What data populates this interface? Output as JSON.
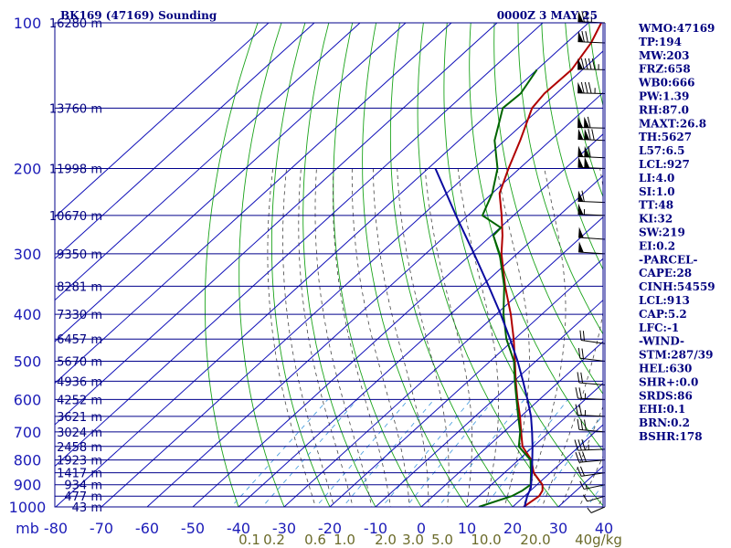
{
  "title": "BK169 (47169) Sounding",
  "valid_time": "0000Z  3 MAY 25",
  "colors": {
    "frame": "#00008b",
    "isotherm": "#1010b8",
    "dry_adiabat": "#1aa31a",
    "moist_adiabat": "#444444",
    "mixing_ratio": "#3c96dc",
    "temperature": "#b00000",
    "dewpoint": "#006400",
    "parcel": "#0a0aa0",
    "wind": "#000000",
    "mixing_label": "#6b6b2a"
  },
  "chart_data": {
    "type": "line",
    "chart_kind": "skew-T log-P",
    "y_axis": {
      "unit": "mb",
      "scale": "log",
      "range": [
        1000,
        100
      ],
      "ticks": [
        100,
        200,
        300,
        400,
        500,
        600,
        700,
        800,
        900,
        1000
      ]
    },
    "x_axis": {
      "unit": "°C",
      "range": [
        -80,
        40
      ],
      "ticks": [
        -80,
        -70,
        -60,
        -50,
        -40,
        -30,
        -20,
        -10,
        0,
        10,
        20,
        30,
        40
      ]
    },
    "pressure_unit_label": "mb",
    "height_labels": [
      {
        "p": 1000,
        "label": "43 m"
      },
      {
        "p": 950,
        "label": "477 m"
      },
      {
        "p": 900,
        "label": "934 m"
      },
      {
        "p": 850,
        "label": "1417 m"
      },
      {
        "p": 800,
        "label": "1923 m"
      },
      {
        "p": 750,
        "label": "2458 m"
      },
      {
        "p": 700,
        "label": "3024 m"
      },
      {
        "p": 650,
        "label": "3621 m"
      },
      {
        "p": 600,
        "label": "4252 m"
      },
      {
        "p": 550,
        "label": "4936 m"
      },
      {
        "p": 500,
        "label": "5670 m"
      },
      {
        "p": 450,
        "label": "6457 m"
      },
      {
        "p": 400,
        "label": "7330 m"
      },
      {
        "p": 350,
        "label": "8281 m"
      },
      {
        "p": 300,
        "label": "9350 m"
      },
      {
        "p": 250,
        "label": "10670 m"
      },
      {
        "p": 200,
        "label": "11998 m"
      },
      {
        "p": 150,
        "label": "13760 m"
      },
      {
        "p": 100,
        "label": "16280 m"
      }
    ],
    "mixing_ratio_labels": [
      "0.1",
      "0.2",
      "0.6",
      "1.0",
      "2.0",
      "3.0",
      "5.0",
      "10.0",
      "20.0",
      "40g/kg"
    ],
    "mixing_ratio_values": [
      0.1,
      0.2,
      0.6,
      1.0,
      2.0,
      3.0,
      5.0,
      10.0,
      20.0,
      40.0
    ],
    "series": [
      {
        "key": "temperature",
        "points": [
          [
            1000,
            22.4
          ],
          [
            950,
            23.2
          ],
          [
            925,
            22.6
          ],
          [
            900,
            21.2
          ],
          [
            850,
            16.4
          ],
          [
            800,
            12.8
          ],
          [
            750,
            7.6
          ],
          [
            700,
            3.8
          ],
          [
            650,
            -0.2
          ],
          [
            600,
            -4.8
          ],
          [
            550,
            -9.6
          ],
          [
            500,
            -14.6
          ],
          [
            450,
            -20.2
          ],
          [
            400,
            -26.8
          ],
          [
            350,
            -34.8
          ],
          [
            300,
            -43.4
          ],
          [
            275,
            -47.6
          ],
          [
            250,
            -52.6
          ],
          [
            225,
            -58.4
          ],
          [
            200,
            -62.4
          ],
          [
            175,
            -66.6
          ],
          [
            150,
            -71.8
          ],
          [
            140,
            -72.6
          ],
          [
            125,
            -72.4
          ],
          [
            110,
            -74.6
          ],
          [
            100,
            -77.2
          ]
        ]
      },
      {
        "key": "dewpoint",
        "points": [
          [
            1000,
            12.6
          ],
          [
            950,
            17.2
          ],
          [
            925,
            18.2
          ],
          [
            900,
            18.6
          ],
          [
            850,
            15.8
          ],
          [
            800,
            12.6
          ],
          [
            750,
            6.8
          ],
          [
            700,
            3.6
          ],
          [
            650,
            -0.6
          ],
          [
            600,
            -5.0
          ],
          [
            550,
            -9.8
          ],
          [
            500,
            -14.8
          ],
          [
            450,
            -21.8
          ],
          [
            400,
            -28.4
          ],
          [
            350,
            -35.0
          ],
          [
            300,
            -43.8
          ],
          [
            275,
            -49.6
          ],
          [
            265,
            -49.8
          ],
          [
            250,
            -56.8
          ],
          [
            225,
            -60.0
          ],
          [
            200,
            -64.8
          ],
          [
            175,
            -72.2
          ],
          [
            150,
            -78.2
          ],
          [
            140,
            -77.8
          ],
          [
            125,
            -80.0
          ]
        ]
      },
      {
        "key": "parcel",
        "points": [
          [
            1000,
            22.6
          ],
          [
            950,
            20.6
          ],
          [
            913,
            19.4
          ],
          [
            850,
            16.0
          ],
          [
            800,
            13.0
          ],
          [
            750,
            9.8
          ],
          [
            700,
            6.2
          ],
          [
            650,
            2.2
          ],
          [
            600,
            -2.6
          ],
          [
            550,
            -8.0
          ],
          [
            500,
            -14.0
          ],
          [
            450,
            -21.0
          ],
          [
            400,
            -29.0
          ],
          [
            350,
            -38.4
          ],
          [
            300,
            -49.4
          ],
          [
            250,
            -62.6
          ],
          [
            200,
            -78.4
          ]
        ]
      }
    ],
    "wind_barbs": [
      {
        "p": 100,
        "dir": 280,
        "spd": 75
      },
      {
        "p": 110,
        "dir": 280,
        "spd": 70
      },
      {
        "p": 125,
        "dir": 275,
        "spd": 95
      },
      {
        "p": 140,
        "dir": 275,
        "spd": 85
      },
      {
        "p": 165,
        "dir": 275,
        "spd": 110
      },
      {
        "p": 175,
        "dir": 280,
        "spd": 120
      },
      {
        "p": 190,
        "dir": 280,
        "spd": 110
      },
      {
        "p": 200,
        "dir": 280,
        "spd": 100
      },
      {
        "p": 235,
        "dir": 280,
        "spd": 60
      },
      {
        "p": 250,
        "dir": 280,
        "spd": 55
      },
      {
        "p": 280,
        "dir": 285,
        "spd": 50
      },
      {
        "p": 300,
        "dir": 285,
        "spd": 50
      },
      {
        "p": 460,
        "dir": 300,
        "spd": 20
      },
      {
        "p": 500,
        "dir": 295,
        "spd": 20
      },
      {
        "p": 560,
        "dir": 290,
        "spd": 20
      },
      {
        "p": 600,
        "dir": 280,
        "spd": 25
      },
      {
        "p": 650,
        "dir": 280,
        "spd": 25
      },
      {
        "p": 700,
        "dir": 290,
        "spd": 30
      },
      {
        "p": 760,
        "dir": 260,
        "spd": 35
      },
      {
        "p": 800,
        "dir": 250,
        "spd": 30
      },
      {
        "p": 850,
        "dir": 240,
        "spd": 20
      },
      {
        "p": 900,
        "dir": 230,
        "spd": 15
      },
      {
        "p": 950,
        "dir": 220,
        "spd": 10
      },
      {
        "p": 1000,
        "dir": 210,
        "spd": 10
      }
    ]
  },
  "indices": [
    "WMO:47169",
    "TP:194",
    "MW:203",
    "FRZ:658",
    "WB0:666",
    "PW:1.39",
    "RH:87.0",
    "MAXT:26.8",
    "TH:5627",
    "L57:6.5",
    "LCL:927",
    "LI:4.0",
    "SI:1.0",
    "TT:48",
    "KI:32",
    "SW:219",
    "EI:0.2",
    "-PARCEL-",
    "CAPE:28",
    "CINH:54559",
    "LCL:913",
    "CAP:5.2",
    "LFC:-1",
    "-WIND-",
    "STM:287/39",
    "HEL:630",
    "SHR+:0.0",
    "SRDS:86",
    "EHI:0.1",
    "BRN:0.2",
    "BSHR:178"
  ]
}
